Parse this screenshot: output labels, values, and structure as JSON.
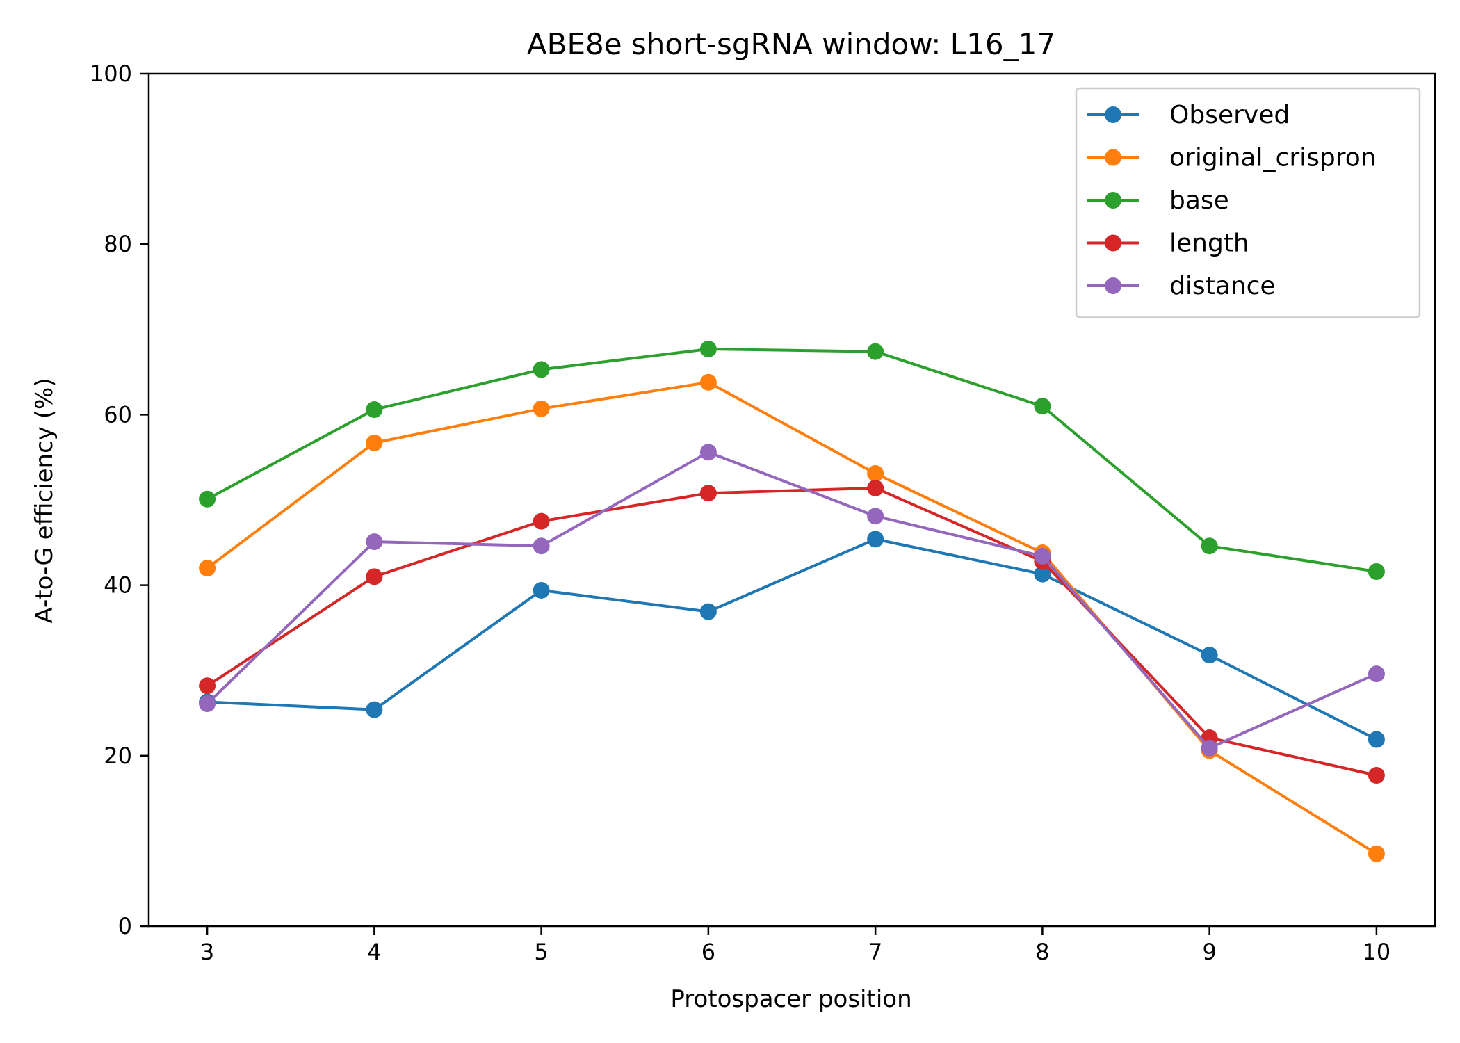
{
  "chart_data": {
    "type": "line",
    "title": "ABE8e short-sgRNA window: L16_17",
    "xlabel": "Protospacer position",
    "ylabel": "A-to-G efficiency (%)",
    "x": [
      3,
      4,
      5,
      6,
      7,
      8,
      9,
      10
    ],
    "xlim": [
      2.65,
      10.35
    ],
    "ylim": [
      0,
      100
    ],
    "xticks": [
      "3",
      "4",
      "5",
      "6",
      "7",
      "8",
      "9",
      "10"
    ],
    "yticks": [
      "0",
      "20",
      "40",
      "60",
      "80",
      "100"
    ],
    "grid": false,
    "legend_position": "upper right",
    "series": [
      {
        "name": "Observed",
        "color": "#1f77b4",
        "values": [
          26.3,
          25.4,
          39.4,
          36.9,
          45.4,
          41.3,
          31.8,
          21.9
        ]
      },
      {
        "name": "original_crispron",
        "color": "#ff7f0e",
        "values": [
          42.0,
          56.7,
          60.7,
          63.8,
          53.1,
          43.8,
          20.6,
          8.5
        ]
      },
      {
        "name": "base",
        "color": "#2ca02c",
        "values": [
          50.1,
          60.6,
          65.3,
          67.7,
          67.4,
          61.0,
          44.6,
          41.6
        ]
      },
      {
        "name": "length",
        "color": "#d62728",
        "values": [
          28.2,
          41.0,
          47.5,
          50.8,
          51.4,
          42.8,
          22.1,
          17.7
        ]
      },
      {
        "name": "distance",
        "color": "#9467bd",
        "values": [
          26.1,
          45.1,
          44.6,
          55.6,
          48.1,
          43.4,
          20.9,
          29.6
        ]
      }
    ]
  }
}
